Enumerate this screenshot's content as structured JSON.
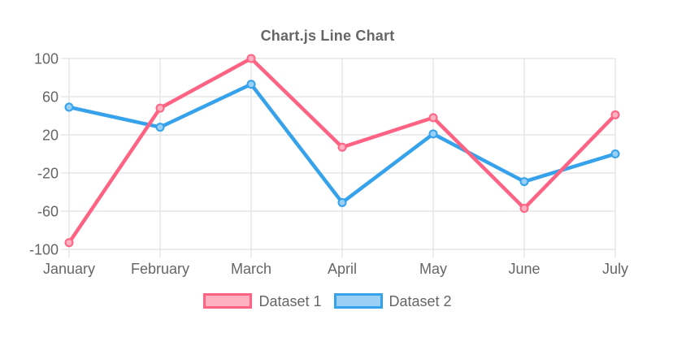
{
  "chart_data": {
    "type": "line",
    "title": "Chart.js Line Chart",
    "categories": [
      "January",
      "February",
      "March",
      "April",
      "May",
      "June",
      "July"
    ],
    "series": [
      {
        "name": "Dataset 1",
        "color": "#ff6384",
        "fill_color": "#ffb1c1",
        "values": [
          -93,
          48,
          100,
          7,
          38,
          -57,
          41
        ]
      },
      {
        "name": "Dataset 2",
        "color": "#36a2eb",
        "fill_color": "#9ad0f5",
        "values": [
          49,
          28,
          73,
          -51,
          21,
          -29,
          0
        ]
      }
    ],
    "xlabel": "",
    "ylabel": "",
    "y_axis": {
      "min": -100,
      "max": 100,
      "step": 40,
      "ticks": [
        100,
        60,
        20,
        -20,
        -60,
        -100
      ]
    },
    "grid": true,
    "legend_position": "bottom",
    "colors": {
      "text": "#666666",
      "grid": "#e5e5e5",
      "background": "#ffffff"
    }
  }
}
